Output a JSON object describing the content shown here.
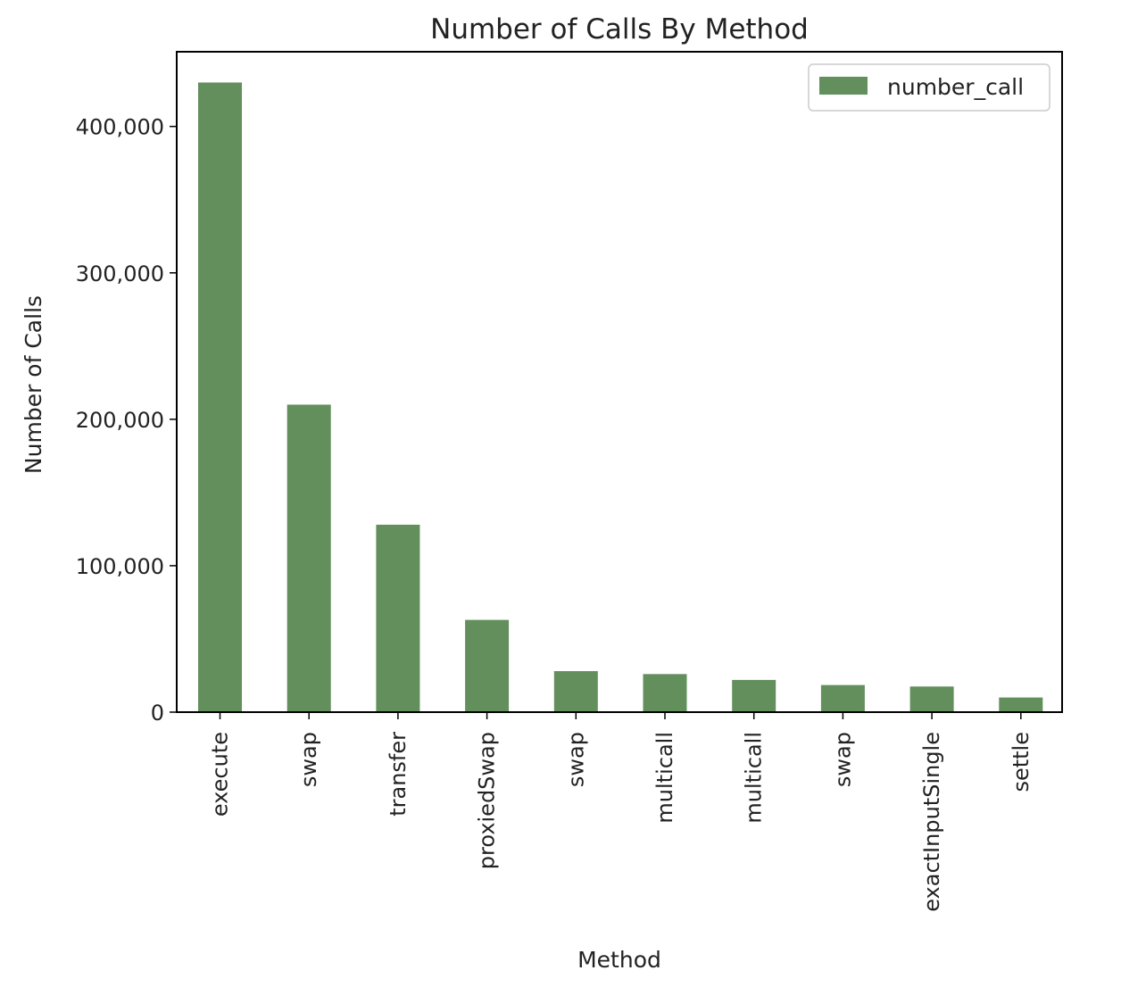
{
  "chart_data": {
    "type": "bar",
    "title": "Number of Calls By Method",
    "xlabel": "Method",
    "ylabel": "Number of Calls",
    "categories": [
      "execute",
      "swap",
      "transfer",
      "proxiedSwap",
      "swap",
      "multicall",
      "multicall",
      "swap",
      "exactInputSingle",
      "settle"
    ],
    "series": [
      {
        "name": "number_call",
        "color": "#628f5c",
        "values": [
          430000,
          210000,
          128000,
          63000,
          28000,
          26000,
          22000,
          18500,
          17500,
          10000
        ]
      }
    ],
    "ylim": [
      0,
      451000
    ],
    "yticks": [
      0,
      100000,
      200000,
      300000,
      400000
    ],
    "ytick_labels": [
      "0",
      "100,000",
      "200,000",
      "300,000",
      "400,000"
    ],
    "legend_position": "top-right",
    "grid": false
  }
}
